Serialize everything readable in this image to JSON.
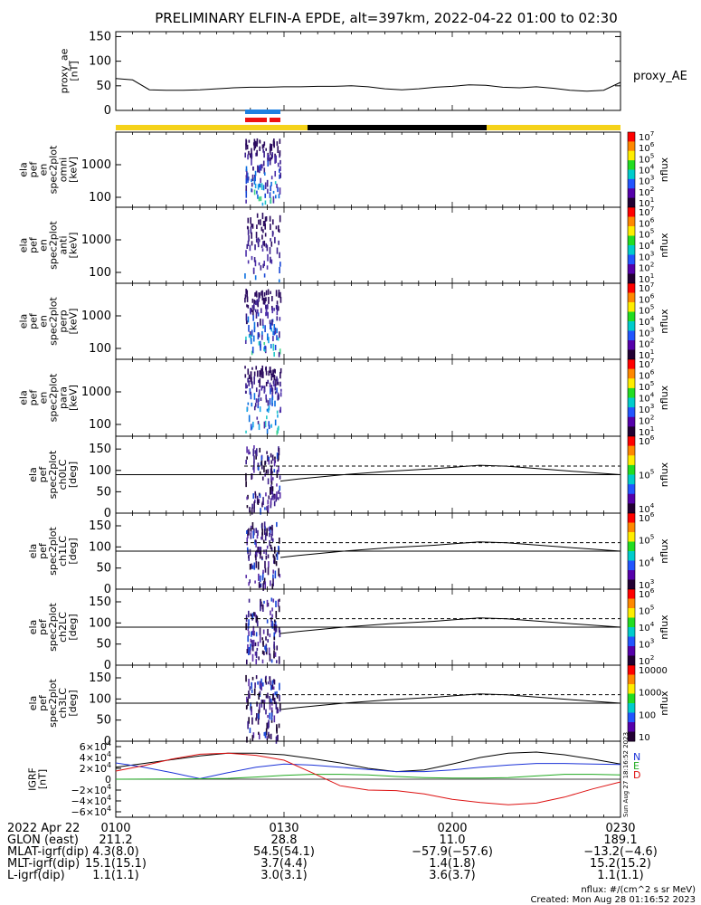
{
  "title": "PRELIMINARY ELFIN-A EPDE, alt=397km, 2022-04-22 01:00 to 02:30",
  "colors": {
    "orbit_bar_yellow": "#f5d21a",
    "orbit_bar_black": "#000000",
    "science_zone_blue": "#1e7fe0",
    "science_zone_red": "#ee1111",
    "bx": "#000000",
    "by": "#1c33d8",
    "bz": "#22aa22",
    "bt": "#dd1111"
  },
  "chart_data": [
    {
      "type": "line",
      "name": "proxy_ae",
      "ylabel": [
        "proxy_ae",
        "[nT]"
      ],
      "ylim": [
        0,
        160
      ],
      "yticks": [
        "150",
        "100",
        "50",
        "0"
      ],
      "legend": "proxy_AE",
      "x": [
        0,
        3,
        6,
        9,
        12,
        15,
        18,
        21,
        24,
        27,
        30,
        33,
        36,
        39,
        42,
        45,
        48,
        51,
        54,
        57,
        60,
        63,
        66,
        69,
        72,
        75,
        78,
        81,
        84,
        87,
        90
      ],
      "values": [
        65,
        62,
        42,
        41,
        41,
        42,
        44,
        46,
        47,
        47,
        48,
        48,
        49,
        49,
        50,
        48,
        44,
        42,
        44,
        47,
        49,
        52,
        51,
        47,
        46,
        48,
        45,
        41,
        39,
        41,
        57
      ]
    },
    {
      "type": "heatmap",
      "name": "omni",
      "ylabel": [
        "ela",
        "pef",
        "en",
        "spec2plot",
        "omni",
        "[keV]"
      ],
      "yticks": [
        "1000",
        "100"
      ],
      "colorbar_ticks": [
        "10^7",
        "10^6",
        "10^5",
        "10^4",
        "10^3",
        "10^2",
        "10^1"
      ],
      "colorbar_label": "nflux"
    },
    {
      "type": "heatmap",
      "name": "anti",
      "ylabel": [
        "ela",
        "pef",
        "en",
        "spec2plot",
        "anti",
        "[keV]"
      ],
      "yticks": [
        "1000",
        "100"
      ],
      "colorbar_ticks": [
        "10^7",
        "10^6",
        "10^5",
        "10^4",
        "10^3",
        "10^2",
        "10^1"
      ],
      "colorbar_label": "nflux"
    },
    {
      "type": "heatmap",
      "name": "perp",
      "ylabel": [
        "ela",
        "pef",
        "en",
        "spec2plot",
        "perp",
        "[keV]"
      ],
      "yticks": [
        "1000",
        "100"
      ],
      "colorbar_ticks": [
        "10^7",
        "10^6",
        "10^5",
        "10^4",
        "10^3",
        "10^2",
        "10^1"
      ],
      "colorbar_label": "nflux"
    },
    {
      "type": "heatmap",
      "name": "para",
      "ylabel": [
        "ela",
        "pef",
        "en",
        "spec2plot",
        "para",
        "[keV]"
      ],
      "yticks": [
        "1000",
        "100"
      ],
      "colorbar_ticks": [
        "10^7",
        "10^6",
        "10^5",
        "10^4",
        "10^3",
        "10^2",
        "10^1"
      ],
      "colorbar_label": "nflux"
    },
    {
      "type": "heatmap",
      "name": "ch0LC",
      "ylabel": [
        "ela",
        "pef",
        "spec2plot",
        "ch0LC",
        "[deg]"
      ],
      "ylim": [
        0,
        180
      ],
      "yticks": [
        "150",
        "100",
        "50",
        "0"
      ],
      "colorbar_ticks": [
        "10^6",
        "10^5",
        "10^4"
      ],
      "colorbar_label": "nflux"
    },
    {
      "type": "heatmap",
      "name": "ch1LC",
      "ylabel": [
        "ela",
        "pef",
        "spec2plot",
        "ch1LC",
        "[deg]"
      ],
      "ylim": [
        0,
        180
      ],
      "yticks": [
        "150",
        "100",
        "50",
        "0"
      ],
      "colorbar_ticks": [
        "10^6",
        "10^5",
        "10^4",
        "10^3"
      ],
      "colorbar_label": "nflux"
    },
    {
      "type": "heatmap",
      "name": "ch2LC",
      "ylabel": [
        "ela",
        "pef",
        "spec2plot",
        "ch2LC",
        "[deg]"
      ],
      "ylim": [
        0,
        180
      ],
      "yticks": [
        "150",
        "100",
        "50",
        "0"
      ],
      "colorbar_ticks": [
        "10^6",
        "10^5",
        "10^4",
        "10^3",
        "10^2"
      ],
      "colorbar_label": "nflux"
    },
    {
      "type": "heatmap",
      "name": "ch3LC",
      "ylabel": [
        "ela",
        "pef",
        "spec2plot",
        "ch3LC",
        "[deg]"
      ],
      "ylim": [
        0,
        180
      ],
      "yticks": [
        "150",
        "100",
        "50",
        "0"
      ],
      "colorbar_ticks": [
        "10000",
        "1000",
        "100",
        "10"
      ],
      "colorbar_label": "nflux"
    },
    {
      "type": "line",
      "name": "IGRF",
      "ylabel": [
        "IGRF",
        "[nT]"
      ],
      "ylim": [
        -70000,
        70000
      ],
      "yticks": [
        "6×10^4",
        "4×10^4",
        "2×10^4",
        "0",
        "−2×10^4",
        "−4×10^4",
        "−6×10^4"
      ],
      "legend": [
        "N",
        "E",
        "D"
      ],
      "x": [
        0,
        5,
        10,
        15,
        20,
        25,
        30,
        35,
        40,
        45,
        50,
        55,
        60,
        65,
        70,
        75,
        80,
        85,
        90
      ],
      "series": [
        {
          "values": [
            22000,
            29000,
            36000,
            43000,
            48000,
            48000,
            45000,
            38000,
            30000,
            20000,
            14000,
            17000,
            28000,
            40000,
            48000,
            50000,
            45000,
            37000,
            28000
          ]
        },
        {
          "values": [
            30000,
            22000,
            12000,
            1000,
            12000,
            22000,
            28000,
            26000,
            22000,
            18000,
            14000,
            14000,
            17000,
            22000,
            26000,
            29000,
            29000,
            28000,
            27000
          ]
        },
        {
          "values": [
            0,
            200,
            500,
            800,
            1500,
            4000,
            7000,
            9000,
            9000,
            8000,
            5000,
            3000,
            2000,
            2000,
            3000,
            6000,
            9000,
            9000,
            8000
          ]
        },
        {
          "values": [
            15000,
            25000,
            37000,
            46000,
            48000,
            44000,
            35000,
            12000,
            -12000,
            -20000,
            -21000,
            -27000,
            -37000,
            -43000,
            -47000,
            -44000,
            -33000,
            -18000,
            -5000
          ]
        }
      ],
      "side_text": "Sun Aug 27 18:16:52 2023"
    }
  ],
  "ticks": {
    "header": [
      "2022 Apr 22",
      "0100",
      "0130",
      "0200",
      "0230"
    ],
    "rows": [
      {
        "label": "GLON (east)",
        "vals": [
          "211.2",
          "28.8",
          "11.0",
          "189.1"
        ]
      },
      {
        "label": "MLAT-igrf(dip)",
        "vals": [
          "4.3(8.0)",
          "54.5(54.1)",
          "−57.9(−57.6)",
          "−13.2(−4.6)"
        ]
      },
      {
        "label": "MLT-igrf(dip)",
        "vals": [
          "15.1(15.1)",
          "3.7(4.4)",
          "1.4(1.8)",
          "15.2(15.2)"
        ]
      },
      {
        "label": "L-igrf(dip)",
        "vals": [
          "1.1(1.1)",
          "3.0(3.1)",
          "3.6(3.7)",
          "1.1(1.1)"
        ]
      }
    ]
  },
  "footer": {
    "units": "nflux: #/(cm^2 s sr MeV)",
    "created": "Created: Mon Aug 28 01:16:52 2023"
  }
}
